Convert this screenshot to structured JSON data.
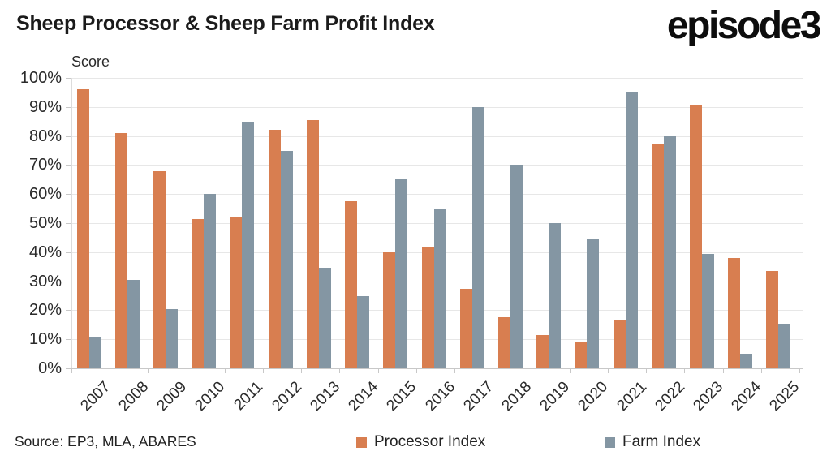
{
  "header": {
    "title": "Sheep Processor & Sheep Farm Profit Index",
    "logo_text": "episode3"
  },
  "chart_data": {
    "type": "bar",
    "title": "Sheep Processor & Sheep Farm Profit Index",
    "ylabel": "Score",
    "categories": [
      "2007",
      "2008",
      "2009",
      "2010",
      "2011",
      "2012",
      "2013",
      "2014",
      "2015",
      "2016",
      "2017",
      "2018",
      "2019",
      "2020",
      "2021",
      "2022",
      "2023",
      "2024",
      "2025"
    ],
    "series": [
      {
        "name": "Processor Index",
        "color": "#D87E50",
        "values": [
          96,
          81,
          68,
          51.5,
          52,
          82,
          85.5,
          57.5,
          40,
          42,
          27.5,
          17.5,
          11.5,
          9,
          16.5,
          77.5,
          90.5,
          38,
          33.5
        ]
      },
      {
        "name": "Farm Index",
        "color": "#8496A3",
        "values": [
          10.5,
          30.5,
          20.5,
          60,
          85,
          75,
          34.5,
          25,
          65,
          55,
          90,
          70,
          50,
          44.5,
          95,
          80,
          39.5,
          5,
          15.5
        ]
      }
    ],
    "ylim": [
      0,
      100
    ],
    "ytick_step": 10,
    "ytick_suffix": "%",
    "grid": "horizontal",
    "legend_position": "bottom",
    "colors": {
      "gridline": "#e7e7e7",
      "axis": "#c8c8c8",
      "text": "#2a2a2a"
    }
  },
  "footer": {
    "source_text": "Source: EP3, MLA, ABARES"
  }
}
